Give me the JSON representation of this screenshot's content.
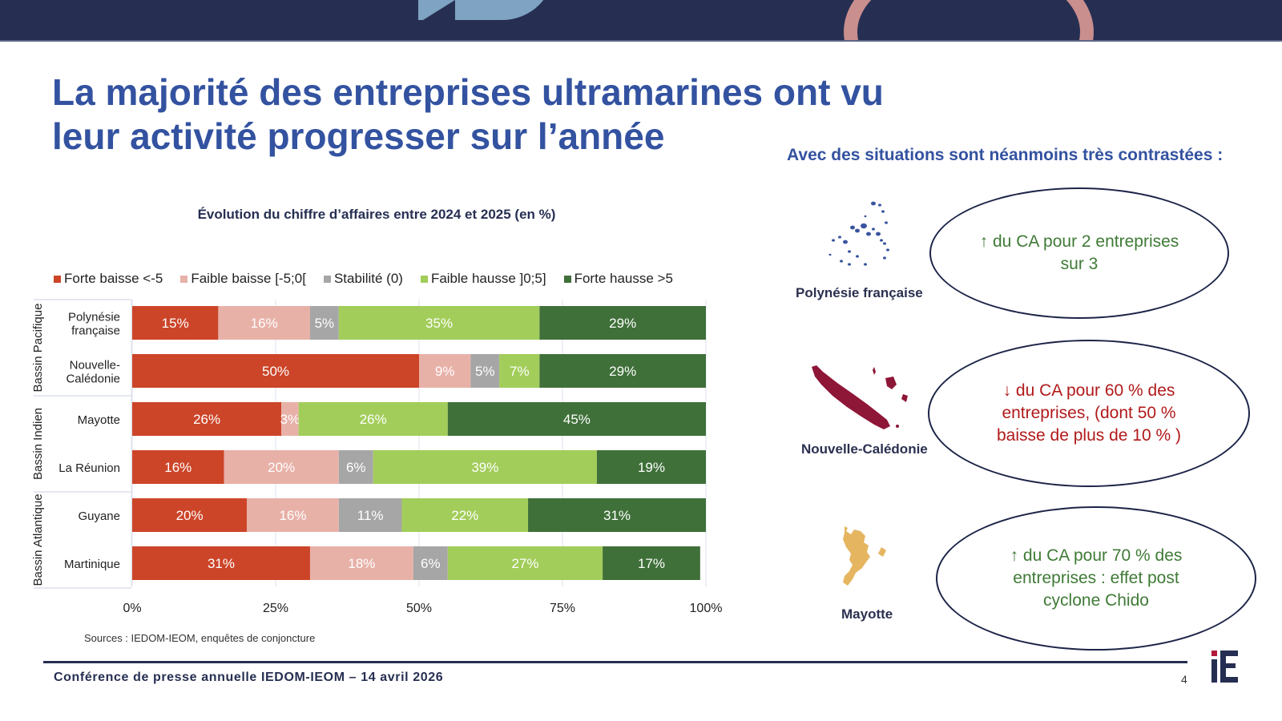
{
  "slide": {
    "title": "La majorité des entreprises ultramarines ont vu leur activité progresser sur l’année",
    "subtitle_right": "Avec des situations sont néanmoins très contrastées :",
    "source": "Sources : IEDOM-IEOM, enquêtes de conjoncture",
    "footer": "Conférence de presse annuelle IEDOM-IEOM – 14 avril 2026",
    "page_number": "4",
    "logo_text": "iE"
  },
  "callouts": [
    {
      "region": "Polynésie française",
      "map_color": "#3a55a0",
      "text": "↑ du CA pour 2 entreprises sur 3",
      "direction": "up"
    },
    {
      "region": "Nouvelle-Calédonie",
      "map_color": "#8e1637",
      "text": "↓ du CA pour 60 % des entreprises, (dont 50 % baisse de plus de 10 % )",
      "direction": "down"
    },
    {
      "region": "Mayotte",
      "map_color": "#e5b560",
      "text": "↑ du CA pour 70 % des entreprises : effet post cyclone Chido",
      "direction": "up"
    }
  ],
  "chart_data": {
    "type": "bar",
    "orientation": "horizontal",
    "stacked": "100%",
    "title": "Évolution du chiffre d’affaires entre 2024 et 2025 (en %)",
    "xlabel": "",
    "ylabel": "",
    "xlim": [
      0,
      100
    ],
    "x_ticks": [
      "0%",
      "25%",
      "50%",
      "75%",
      "100%"
    ],
    "grid": true,
    "legend_position": "top",
    "categories": [
      "Polynésie française",
      "Nouvelle-Calédonie",
      "Mayotte",
      "La Réunion",
      "Guyane",
      "Martinique"
    ],
    "category_labels": [
      [
        "Polynésie",
        "française"
      ],
      [
        "Nouvelle-",
        "Calédonie"
      ],
      [
        "Mayotte"
      ],
      [
        "La Réunion"
      ],
      [
        "Guyane"
      ],
      [
        "Martinique"
      ]
    ],
    "groups": [
      {
        "name": "Bassin Pacifique",
        "categories": [
          "Polynésie française",
          "Nouvelle-Calédonie"
        ]
      },
      {
        "name": "Bassin Indien",
        "categories": [
          "Mayotte",
          "La Réunion"
        ]
      },
      {
        "name": "Bassin Atlantique",
        "categories": [
          "Guyane",
          "Martinique"
        ]
      }
    ],
    "series": [
      {
        "name": "Forte baisse <-5",
        "color": "#cc4529",
        "values": [
          15,
          50,
          26,
          16,
          20,
          31
        ]
      },
      {
        "name": "Faible baisse [-5;0[",
        "color": "#e8b1a8",
        "values": [
          16,
          9,
          3,
          20,
          16,
          18
        ]
      },
      {
        "name": "Stabilité (0)",
        "color": "#a6a6a6",
        "values": [
          5,
          5,
          0,
          6,
          11,
          6
        ]
      },
      {
        "name": "Faible hausse ]0;5]",
        "color": "#a2cd5a",
        "values": [
          35,
          7,
          26,
          39,
          22,
          27
        ]
      },
      {
        "name": "Forte hausse >5",
        "color": "#3f7039",
        "values": [
          29,
          29,
          45,
          19,
          31,
          17
        ]
      }
    ]
  }
}
